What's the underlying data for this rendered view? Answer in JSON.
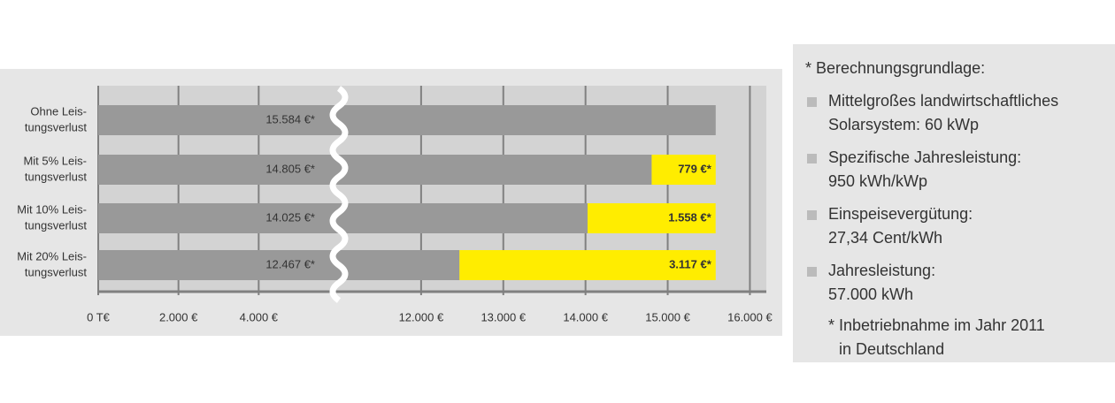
{
  "chart_data": {
    "type": "bar",
    "orientation": "horizontal",
    "stacked": true,
    "categories": [
      [
        "Ohne Leis-",
        "tungsverlust"
      ],
      [
        "Mit 5% Leis-",
        "tungsverlust"
      ],
      [
        "Mit 10% Leis-",
        "tungsverlust"
      ],
      [
        "Mit 20% Leis-",
        "tungsverlust"
      ]
    ],
    "series": [
      {
        "color": "#999999",
        "values": [
          15584,
          14805,
          14025,
          12467
        ],
        "value_labels": [
          "15.584 €*",
          "14.805 €*",
          "14.025 €*",
          "12.467 €*"
        ]
      },
      {
        "color": "#ffed00",
        "values": [
          null,
          779,
          1558,
          3117
        ],
        "value_labels": [
          null,
          "779 €*",
          "1.558 €*",
          "3.117 €*"
        ]
      }
    ],
    "xlim": [
      0,
      16200
    ],
    "xbreak": [
      6000,
      11000
    ],
    "xticks": [
      {
        "value": 0,
        "label": "0 T€"
      },
      {
        "value": 2000,
        "label": "2.000 €"
      },
      {
        "value": 4000,
        "label": "4.000 €"
      },
      {
        "value": 12000,
        "label": "12.000 €"
      },
      {
        "value": 13000,
        "label": "13.000 €"
      },
      {
        "value": 14000,
        "label": "14.000 €"
      },
      {
        "value": 15000,
        "label": "15.000 €"
      },
      {
        "value": 16000,
        "label": "16.000 €"
      }
    ],
    "grid": true
  },
  "notes": {
    "title": "* Berechnungsgrundlage:",
    "items": [
      [
        "Mittelgroßes landwirtschaftliches",
        "Solarsystem: 60 kWp"
      ],
      [
        "Spezifische Jahresleistung:",
        "950 kWh/kWp"
      ],
      [
        "Einspeisevergütung:",
        "27,34 Cent/kWh"
      ],
      [
        "Jahresleistung:",
        "57.000 kWh"
      ]
    ],
    "footnote": [
      "* Inbetriebnahme im Jahr 2011",
      "in Deutschland"
    ]
  }
}
